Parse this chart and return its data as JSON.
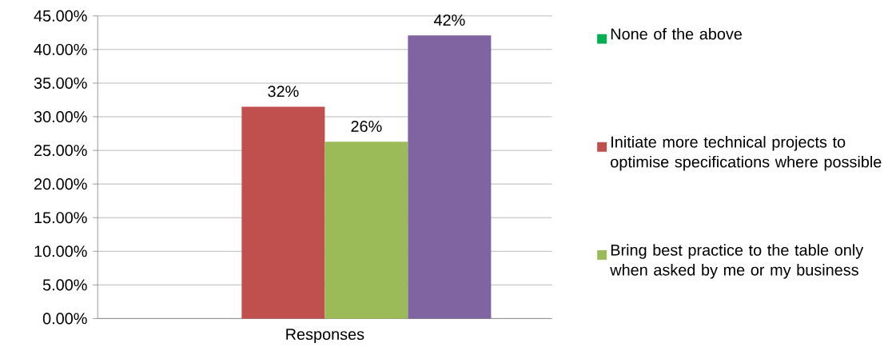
{
  "chart_data": {
    "type": "bar",
    "categories": [
      "Responses"
    ],
    "series": [
      {
        "name": "None of the above",
        "color": "#00b050",
        "values": [
          0
        ],
        "value_labels": [
          null
        ]
      },
      {
        "name": "Initiate more technical projects to optimise specifications where possible",
        "color": "#c0504d",
        "values": [
          31.5
        ],
        "value_labels": [
          "32%"
        ]
      },
      {
        "name": "Bring best practice to the table only when asked by me or my business",
        "color": "#9bbb59",
        "values": [
          26.3
        ],
        "value_labels": [
          "26%"
        ]
      },
      {
        "color": "#8064a2",
        "values": [
          42.1
        ],
        "value_labels": [
          "42%"
        ]
      }
    ],
    "ylim": [
      0,
      45
    ],
    "yticks": [
      {
        "value": 0,
        "label": "0.00%"
      },
      {
        "value": 5,
        "label": "5.00%"
      },
      {
        "value": 10,
        "label": "10.00%"
      },
      {
        "value": 15,
        "label": "15.00%"
      },
      {
        "value": 20,
        "label": "20.00%"
      },
      {
        "value": 25,
        "label": "25.00%"
      },
      {
        "value": 30,
        "label": "30.00%"
      },
      {
        "value": 35,
        "label": "35.00%"
      },
      {
        "value": 40,
        "label": "40.00%"
      },
      {
        "value": 45,
        "label": "45.00%"
      }
    ],
    "grid": "y",
    "legend": "right"
  }
}
